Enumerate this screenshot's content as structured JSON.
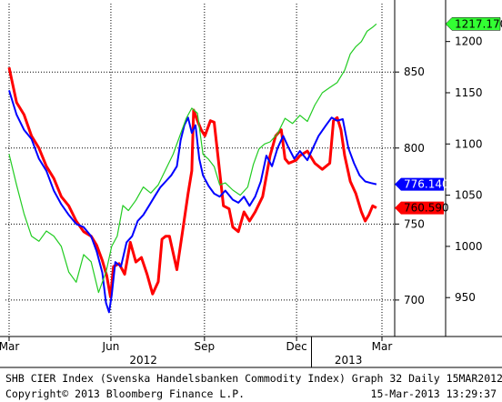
{
  "footer": {
    "caption": "SHB CIER Index (Svenska Handelsbanken Commodity Index) Graph 32  Daily 15MAR2012",
    "copyright": "Copyright© 2013 Bloomberg Finance L.P.",
    "timestamp": "15-Mar-2013 13:29:37"
  },
  "chart_data": {
    "type": "line",
    "x_tick_labels": [
      "Mar",
      "Jun",
      "Sep",
      "Dec",
      "Mar"
    ],
    "x_tick_fracs": [
      0.0,
      0.273,
      0.524,
      0.771,
      1.0
    ],
    "year_labels": [
      {
        "label": "2012",
        "frac": 0.36
      },
      {
        "label": "2013",
        "frac": 0.91
      }
    ],
    "left_axis": {
      "ticks": [
        700,
        750,
        800,
        850
      ],
      "ylim": [
        676,
        895
      ]
    },
    "right_axis": {
      "ticks": [
        950,
        1000,
        1050,
        1100,
        1150,
        1200
      ],
      "ylim": [
        912,
        1237
      ]
    },
    "grid": true,
    "series": [
      {
        "color": "#ff0000",
        "axis": "left",
        "last_value": "760.590",
        "points": [
          [
            0.0,
            853
          ],
          [
            0.02,
            830
          ],
          [
            0.04,
            822
          ],
          [
            0.06,
            808
          ],
          [
            0.08,
            800
          ],
          [
            0.1,
            788
          ],
          [
            0.12,
            780
          ],
          [
            0.14,
            768
          ],
          [
            0.16,
            762
          ],
          [
            0.18,
            752
          ],
          [
            0.2,
            745
          ],
          [
            0.22,
            742
          ],
          [
            0.235,
            736
          ],
          [
            0.25,
            726
          ],
          [
            0.262,
            716
          ],
          [
            0.272,
            702
          ],
          [
            0.28,
            722
          ],
          [
            0.295,
            724
          ],
          [
            0.31,
            717
          ],
          [
            0.325,
            738
          ],
          [
            0.34,
            725
          ],
          [
            0.355,
            728
          ],
          [
            0.37,
            717
          ],
          [
            0.385,
            704
          ],
          [
            0.4,
            712
          ],
          [
            0.41,
            740
          ],
          [
            0.42,
            742
          ],
          [
            0.43,
            742
          ],
          [
            0.45,
            720
          ],
          [
            0.465,
            745
          ],
          [
            0.48,
            770
          ],
          [
            0.49,
            785
          ],
          [
            0.495,
            825
          ],
          [
            0.505,
            818
          ],
          [
            0.515,
            812
          ],
          [
            0.525,
            808
          ],
          [
            0.54,
            818
          ],
          [
            0.55,
            817
          ],
          [
            0.56,
            795
          ],
          [
            0.575,
            762
          ],
          [
            0.59,
            760
          ],
          [
            0.6,
            748
          ],
          [
            0.615,
            745
          ],
          [
            0.63,
            758
          ],
          [
            0.645,
            752
          ],
          [
            0.66,
            758
          ],
          [
            0.68,
            768
          ],
          [
            0.7,
            795
          ],
          [
            0.715,
            808
          ],
          [
            0.73,
            812
          ],
          [
            0.74,
            793
          ],
          [
            0.75,
            790
          ],
          [
            0.77,
            792
          ],
          [
            0.78,
            795
          ],
          [
            0.8,
            798
          ],
          [
            0.82,
            790
          ],
          [
            0.84,
            786
          ],
          [
            0.86,
            790
          ],
          [
            0.87,
            818
          ],
          [
            0.88,
            820
          ],
          [
            0.89,
            812
          ],
          [
            0.9,
            795
          ],
          [
            0.915,
            778
          ],
          [
            0.93,
            770
          ],
          [
            0.945,
            758
          ],
          [
            0.955,
            752
          ],
          [
            0.965,
            756
          ],
          [
            0.975,
            762
          ],
          [
            0.985,
            760.59
          ]
        ]
      },
      {
        "color": "#0000ff",
        "axis": "left",
        "last_value": "776.140",
        "points": [
          [
            0.0,
            838
          ],
          [
            0.02,
            822
          ],
          [
            0.04,
            812
          ],
          [
            0.06,
            806
          ],
          [
            0.08,
            793
          ],
          [
            0.1,
            785
          ],
          [
            0.12,
            772
          ],
          [
            0.14,
            763
          ],
          [
            0.16,
            756
          ],
          [
            0.18,
            750
          ],
          [
            0.2,
            748
          ],
          [
            0.22,
            742
          ],
          [
            0.235,
            732
          ],
          [
            0.25,
            718
          ],
          [
            0.26,
            698
          ],
          [
            0.268,
            692
          ],
          [
            0.275,
            703
          ],
          [
            0.285,
            725
          ],
          [
            0.3,
            722
          ],
          [
            0.315,
            738
          ],
          [
            0.33,
            742
          ],
          [
            0.345,
            752
          ],
          [
            0.36,
            756
          ],
          [
            0.375,
            762
          ],
          [
            0.39,
            768
          ],
          [
            0.405,
            774
          ],
          [
            0.42,
            778
          ],
          [
            0.435,
            782
          ],
          [
            0.45,
            788
          ],
          [
            0.46,
            805
          ],
          [
            0.47,
            815
          ],
          [
            0.48,
            820
          ],
          [
            0.49,
            810
          ],
          [
            0.5,
            815
          ],
          [
            0.51,
            793
          ],
          [
            0.52,
            782
          ],
          [
            0.535,
            775
          ],
          [
            0.55,
            770
          ],
          [
            0.565,
            768
          ],
          [
            0.58,
            772
          ],
          [
            0.6,
            766
          ],
          [
            0.615,
            764
          ],
          [
            0.63,
            768
          ],
          [
            0.645,
            762
          ],
          [
            0.66,
            768
          ],
          [
            0.675,
            778
          ],
          [
            0.69,
            795
          ],
          [
            0.705,
            788
          ],
          [
            0.72,
            800
          ],
          [
            0.735,
            808
          ],
          [
            0.75,
            800
          ],
          [
            0.765,
            793
          ],
          [
            0.78,
            798
          ],
          [
            0.8,
            792
          ],
          [
            0.815,
            800
          ],
          [
            0.83,
            808
          ],
          [
            0.85,
            815
          ],
          [
            0.865,
            820
          ],
          [
            0.88,
            818
          ],
          [
            0.895,
            819
          ],
          [
            0.91,
            800
          ],
          [
            0.925,
            790
          ],
          [
            0.94,
            782
          ],
          [
            0.955,
            778
          ],
          [
            0.97,
            777
          ],
          [
            0.985,
            776.14
          ]
        ]
      },
      {
        "color": "#22cc22",
        "axis": "right",
        "last_value": "1217.170",
        "points": [
          [
            0.0,
            1090
          ],
          [
            0.02,
            1060
          ],
          [
            0.04,
            1032
          ],
          [
            0.06,
            1010
          ],
          [
            0.08,
            1005
          ],
          [
            0.1,
            1015
          ],
          [
            0.12,
            1010
          ],
          [
            0.14,
            1000
          ],
          [
            0.16,
            975
          ],
          [
            0.18,
            965
          ],
          [
            0.2,
            992
          ],
          [
            0.22,
            985
          ],
          [
            0.24,
            955
          ],
          [
            0.26,
            975
          ],
          [
            0.275,
            1000
          ],
          [
            0.29,
            1010
          ],
          [
            0.305,
            1040
          ],
          [
            0.32,
            1035
          ],
          [
            0.34,
            1045
          ],
          [
            0.36,
            1058
          ],
          [
            0.38,
            1052
          ],
          [
            0.4,
            1060
          ],
          [
            0.42,
            1075
          ],
          [
            0.44,
            1090
          ],
          [
            0.46,
            1110
          ],
          [
            0.475,
            1125
          ],
          [
            0.49,
            1135
          ],
          [
            0.505,
            1130
          ],
          [
            0.52,
            1090
          ],
          [
            0.535,
            1085
          ],
          [
            0.55,
            1078
          ],
          [
            0.565,
            1060
          ],
          [
            0.58,
            1062
          ],
          [
            0.6,
            1055
          ],
          [
            0.62,
            1050
          ],
          [
            0.64,
            1058
          ],
          [
            0.655,
            1080
          ],
          [
            0.67,
            1095
          ],
          [
            0.685,
            1100
          ],
          [
            0.7,
            1102
          ],
          [
            0.72,
            1110
          ],
          [
            0.74,
            1125
          ],
          [
            0.76,
            1120
          ],
          [
            0.78,
            1128
          ],
          [
            0.8,
            1122
          ],
          [
            0.82,
            1138
          ],
          [
            0.84,
            1150
          ],
          [
            0.86,
            1155
          ],
          [
            0.88,
            1160
          ],
          [
            0.9,
            1172
          ],
          [
            0.915,
            1188
          ],
          [
            0.93,
            1195
          ],
          [
            0.945,
            1200
          ],
          [
            0.96,
            1210
          ],
          [
            0.975,
            1214
          ],
          [
            0.985,
            1217.17
          ]
        ]
      }
    ]
  }
}
